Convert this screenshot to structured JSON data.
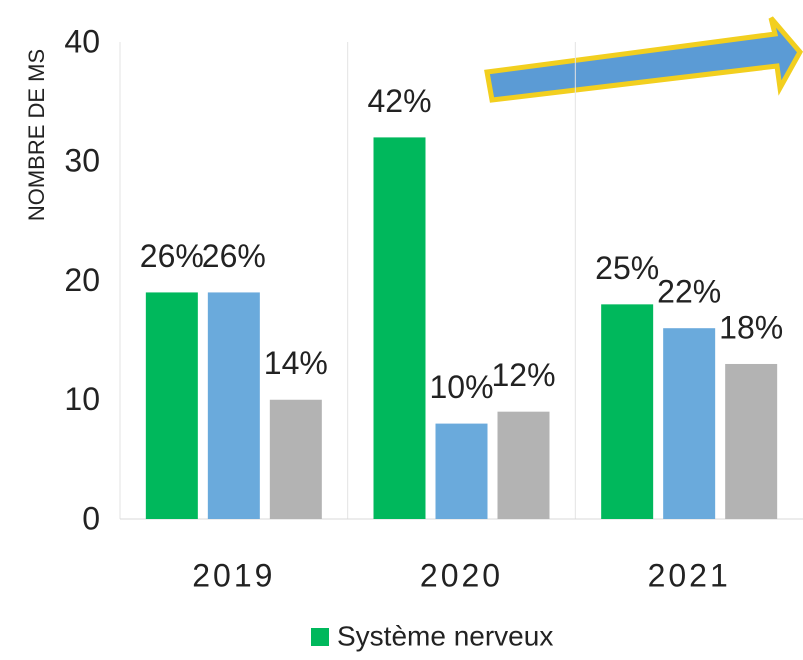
{
  "chart_data": {
    "type": "bar",
    "y_label": "NOMBRE DE MS",
    "categories": [
      "2019",
      "2020",
      "2021"
    ],
    "series": [
      {
        "name": "Système nerveux",
        "color": "#00b85c",
        "values": [
          19,
          32,
          18
        ],
        "value_labels": [
          "26%",
          "42%",
          "25%"
        ]
      },
      {
        "color": "#6aaadc",
        "values": [
          19,
          8,
          16
        ],
        "value_labels": [
          "26%",
          "10%",
          "22%"
        ]
      },
      {
        "color": "#b3b3b3",
        "values": [
          10,
          9,
          13
        ],
        "value_labels": [
          "14%",
          "12%",
          "18%"
        ]
      }
    ],
    "ylim": [
      0,
      40
    ],
    "yticks": [
      0,
      10,
      20,
      30,
      40
    ],
    "legend": "bottom"
  }
}
